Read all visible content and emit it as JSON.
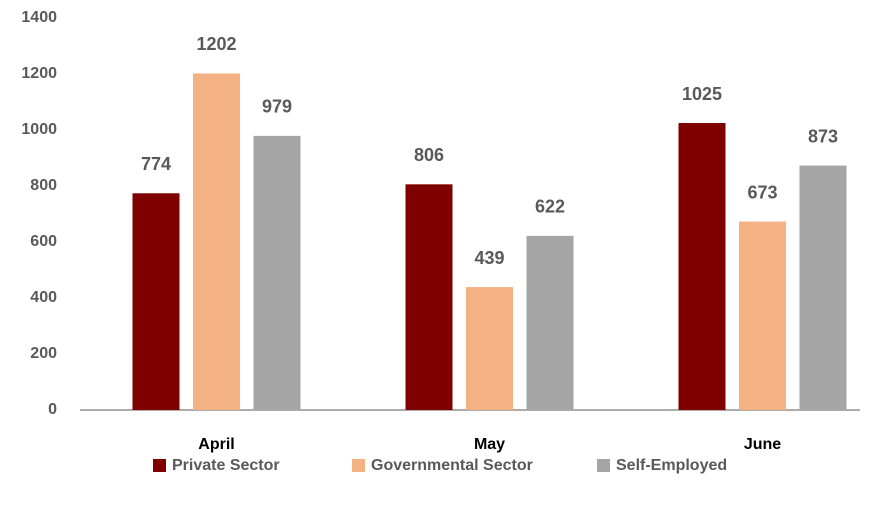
{
  "chart_data": {
    "type": "bar",
    "categories": [
      "April",
      "May",
      "June"
    ],
    "series": [
      {
        "name": "Private Sector",
        "color": "#7f0000",
        "values": [
          774,
          806,
          1025
        ]
      },
      {
        "name": "Governmental Sector",
        "color": "#f4b183",
        "values": [
          1202,
          439,
          673
        ]
      },
      {
        "name": "Self-Employed",
        "color": "#a5a5a5",
        "values": [
          979,
          622,
          873
        ]
      }
    ],
    "ylim": [
      0,
      1400
    ],
    "yticks": [
      0,
      200,
      400,
      600,
      800,
      1000,
      1200,
      1400
    ],
    "grid": false,
    "legend": "bottom"
  }
}
